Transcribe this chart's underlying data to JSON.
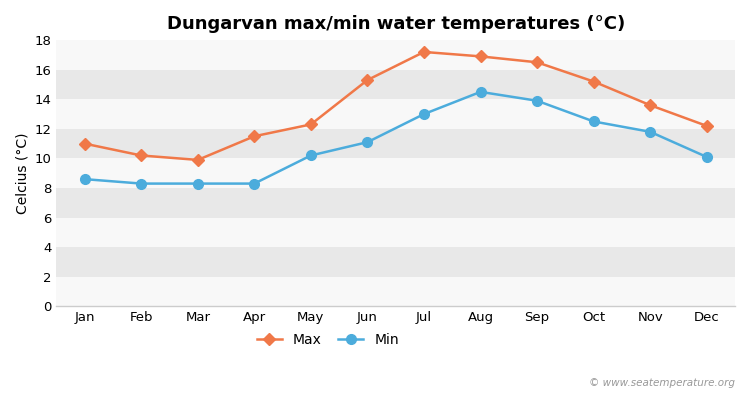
{
  "title": "Dungarvan max/min water temperatures (°C)",
  "ylabel": "Celcius (°C)",
  "months": [
    "Jan",
    "Feb",
    "Mar",
    "Apr",
    "May",
    "Jun",
    "Jul",
    "Aug",
    "Sep",
    "Oct",
    "Nov",
    "Dec"
  ],
  "max_values": [
    11.0,
    10.2,
    9.9,
    11.5,
    12.3,
    15.3,
    17.2,
    16.9,
    16.5,
    15.2,
    13.6,
    12.2
  ],
  "min_values": [
    8.6,
    8.3,
    8.3,
    8.3,
    10.2,
    11.1,
    13.0,
    14.5,
    13.9,
    12.5,
    11.8,
    10.1
  ],
  "max_color": "#f07848",
  "min_color": "#4cacdc",
  "figure_bg": "#ffffff",
  "plot_bg": "#f0f0f0",
  "band_light": "#f8f8f8",
  "band_dark": "#e8e8e8",
  "grid_color": "#ffffff",
  "ylim": [
    0,
    18
  ],
  "yticks": [
    0,
    2,
    4,
    6,
    8,
    10,
    12,
    14,
    16,
    18
  ],
  "max_marker": "D",
  "min_marker": "o",
  "max_markersize": 6,
  "min_markersize": 7,
  "linewidth": 1.8,
  "legend_labels": [
    "Max",
    "Min"
  ],
  "watermark": "© www.seatemperature.org",
  "title_fontsize": 13,
  "axis_fontsize": 10,
  "tick_fontsize": 9.5
}
